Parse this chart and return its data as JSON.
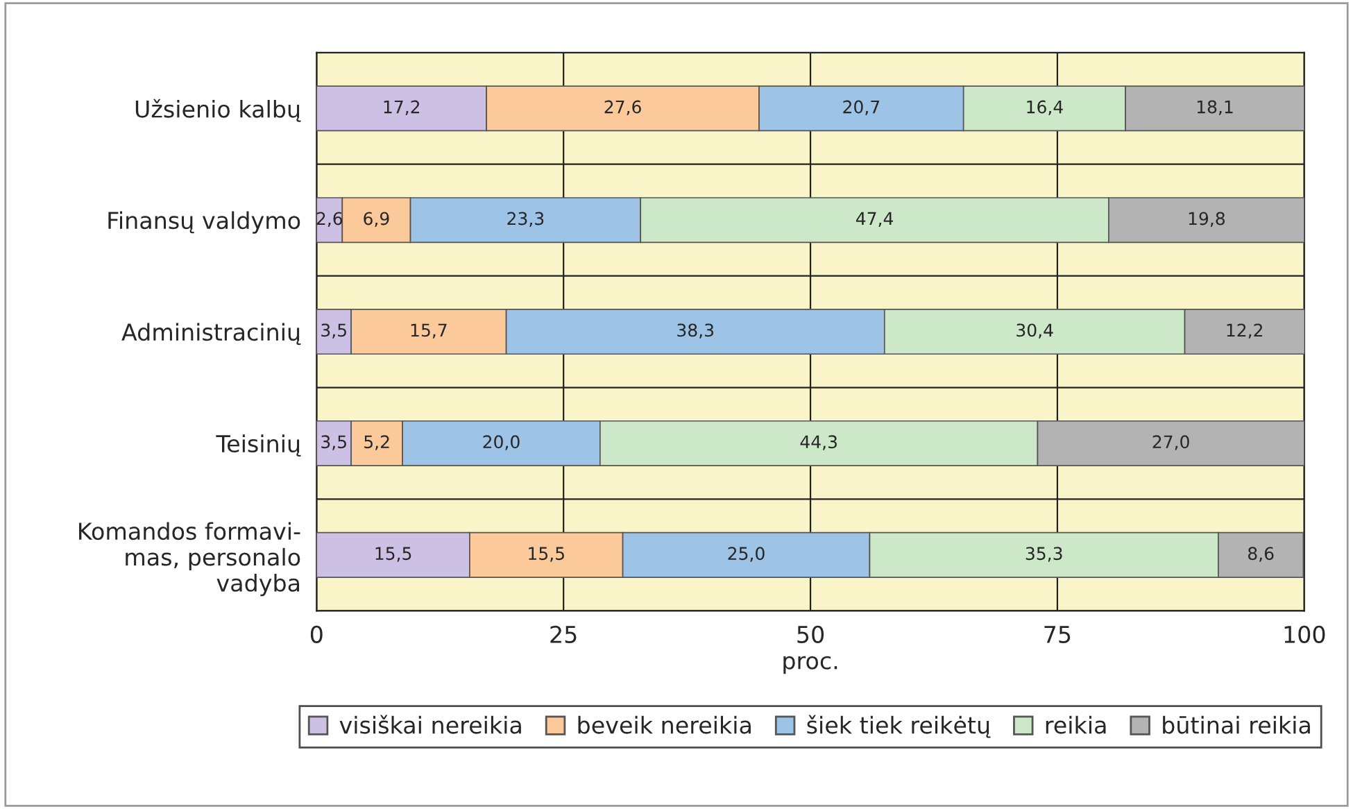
{
  "chart_data": {
    "type": "bar",
    "orientation": "horizontal",
    "stacked": true,
    "xlabel": "proc.",
    "categories": [
      "Užsienio kalbų",
      "Finansų valdymo",
      "Administracinių",
      "Teisinių",
      "Komandos formavi-\nmas, personalo\nvadyba"
    ],
    "series": [
      {
        "name": "visiškai nereikia",
        "color": "#ccc0e4",
        "values": [
          17.2,
          2.6,
          3.5,
          3.5,
          15.5
        ],
        "value_labels": [
          "17,2",
          "2,6",
          "3,5",
          "3,5",
          "15,5"
        ]
      },
      {
        "name": "beveik nereikia",
        "color": "#fcc99a",
        "values": [
          27.6,
          6.9,
          15.7,
          5.2,
          15.5
        ],
        "value_labels": [
          "27,6",
          "6,9",
          "15,7",
          "5,2",
          "15,5"
        ]
      },
      {
        "name": "šiek tiek reikėtų",
        "color": "#9dc3e6",
        "values": [
          20.7,
          23.3,
          38.3,
          20.0,
          25.0
        ],
        "value_labels": [
          "20,7",
          "23,3",
          "38,3",
          "20,0",
          "25,0"
        ]
      },
      {
        "name": "reikia",
        "color": "#cce8c8",
        "values": [
          16.4,
          47.4,
          30.4,
          44.3,
          35.3
        ],
        "value_labels": [
          "16,4",
          "47,4",
          "30,4",
          "44,3",
          "35,3"
        ]
      },
      {
        "name": "būtinai reikia",
        "color": "#b3b3b3",
        "values": [
          18.1,
          19.8,
          12.2,
          27.0,
          8.6
        ],
        "value_labels": [
          "18,1",
          "19,8",
          "12,2",
          "27,0",
          "8,6"
        ]
      }
    ],
    "xlim": [
      0,
      100
    ],
    "xticks": [
      0,
      25,
      50,
      75,
      100
    ],
    "grid": true,
    "legend": "bottom"
  }
}
